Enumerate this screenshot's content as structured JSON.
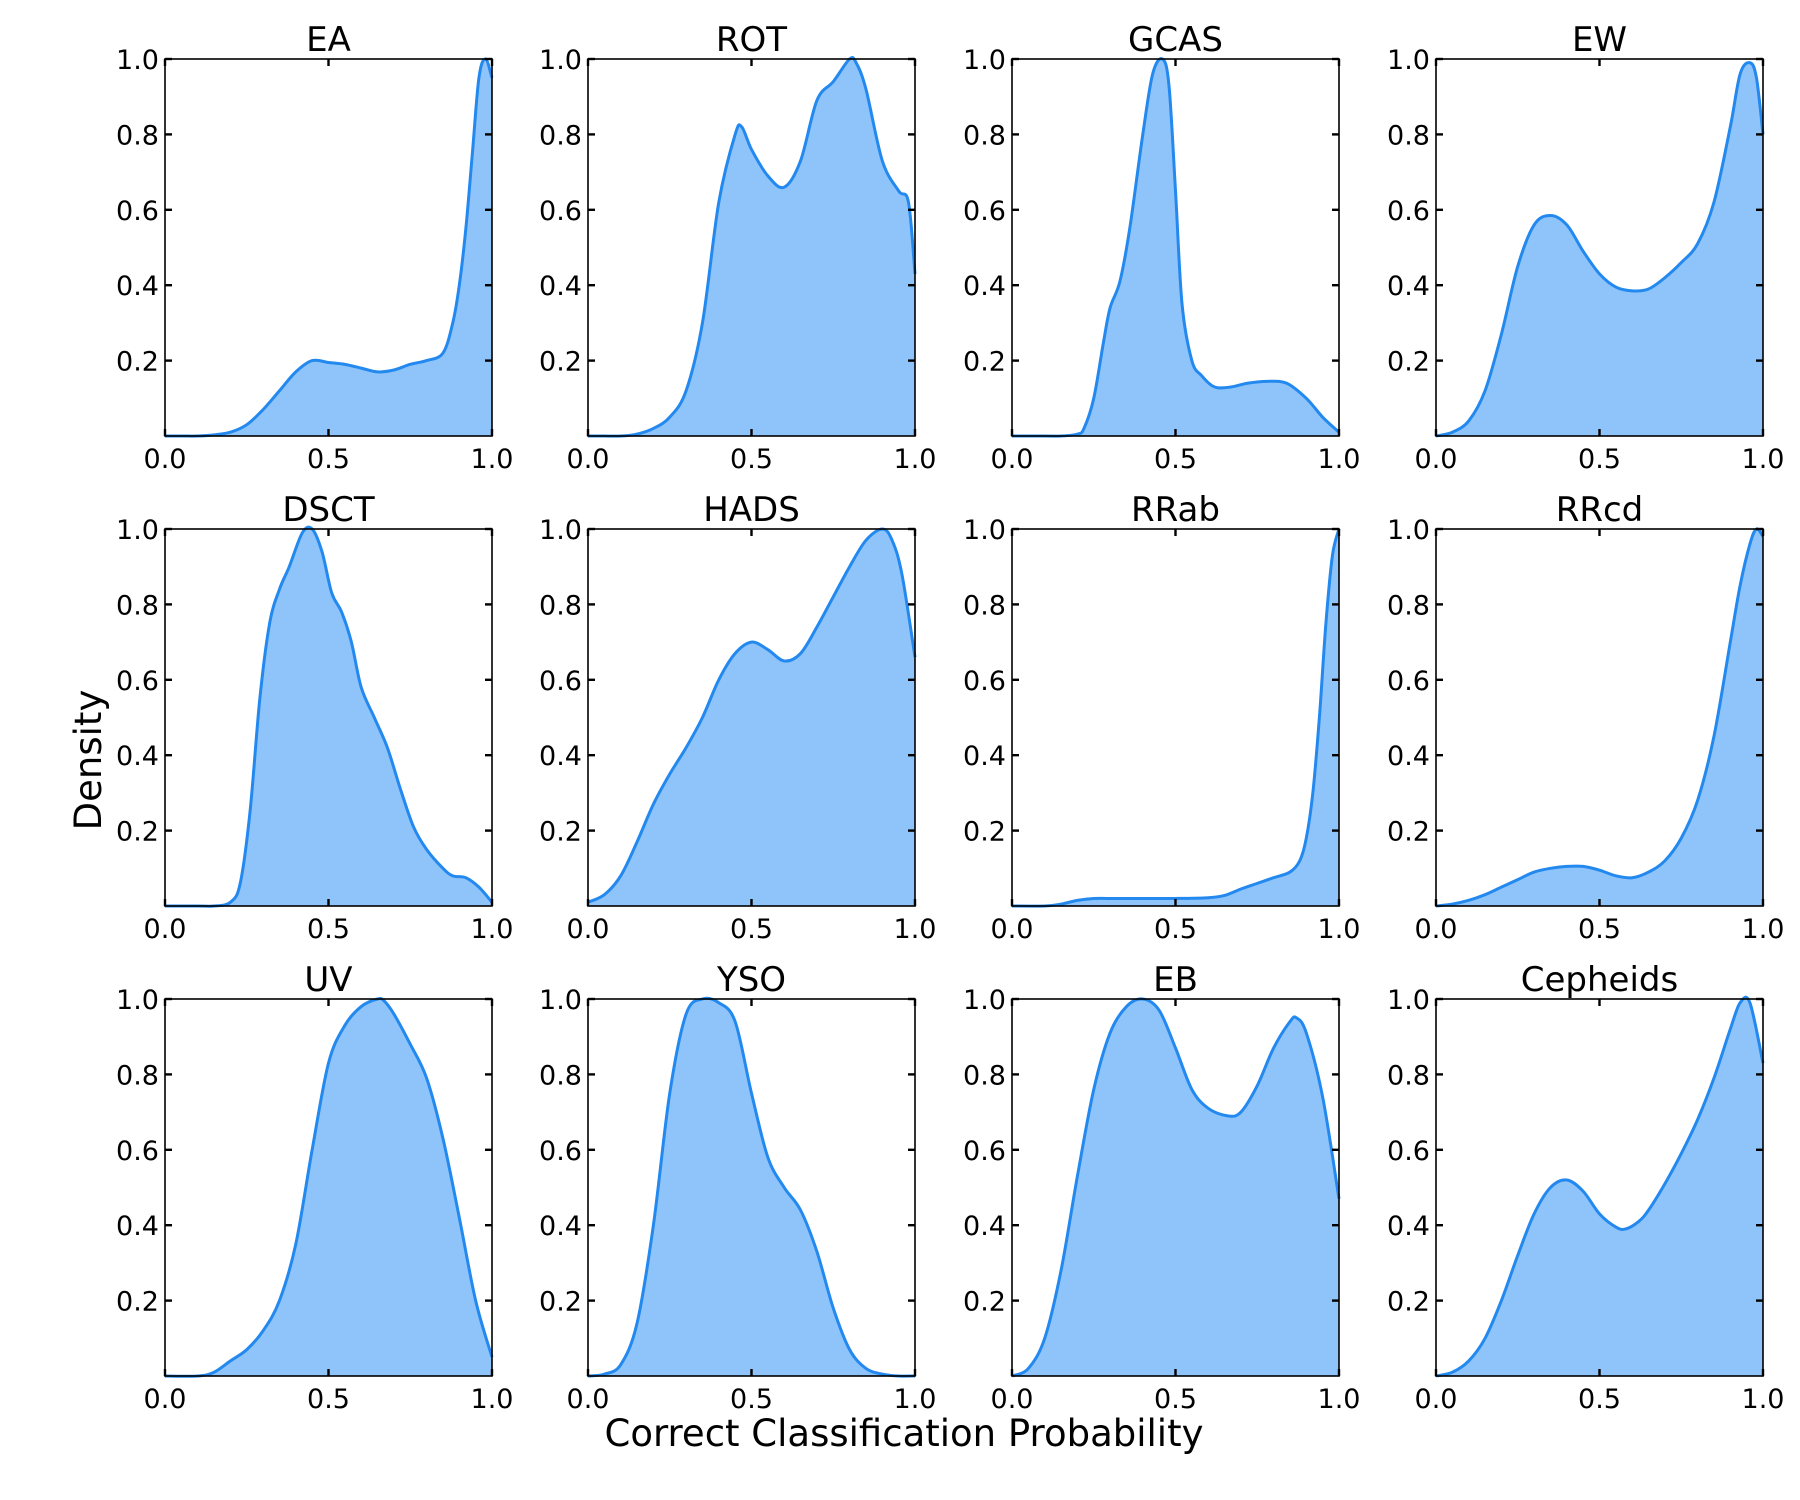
{
  "figure": {
    "xlabel": "Correct Classification Probability",
    "ylabel": "Density"
  },
  "colors": {
    "fill": "#8fc4fb",
    "line": "#2389ef"
  },
  "chart_data": [
    {
      "type": "area",
      "title": "EA",
      "xlim": [
        0,
        1
      ],
      "ylim": [
        0,
        1
      ],
      "xticks": [
        0.0,
        0.5,
        1.0
      ],
      "xtick_labels": [
        "0.0",
        "0.5",
        "1.0"
      ],
      "yticks": [
        0.2,
        0.4,
        0.6,
        0.8,
        1.0
      ],
      "ytick_labels": [
        "0.2",
        "0.4",
        "0.6",
        "0.8",
        "1.0"
      ],
      "x": [
        0.0,
        0.05,
        0.1,
        0.15,
        0.2,
        0.25,
        0.3,
        0.35,
        0.4,
        0.45,
        0.5,
        0.55,
        0.6,
        0.65,
        0.7,
        0.75,
        0.8,
        0.85,
        0.88,
        0.9,
        0.92,
        0.94,
        0.96,
        0.98,
        1.0
      ],
      "y": [
        0.0,
        0.0,
        0.0,
        0.003,
        0.01,
        0.03,
        0.07,
        0.12,
        0.17,
        0.2,
        0.195,
        0.19,
        0.18,
        0.17,
        0.175,
        0.19,
        0.2,
        0.22,
        0.3,
        0.4,
        0.55,
        0.75,
        0.95,
        1.0,
        0.95
      ]
    },
    {
      "type": "area",
      "title": "ROT",
      "xlim": [
        0,
        1
      ],
      "ylim": [
        0,
        1
      ],
      "xticks": [
        0.0,
        0.5,
        1.0
      ],
      "xtick_labels": [
        "0.0",
        "0.5",
        "1.0"
      ],
      "yticks": [
        0.2,
        0.4,
        0.6,
        0.8,
        1.0
      ],
      "ytick_labels": [
        "0.2",
        "0.4",
        "0.6",
        "0.8",
        "1.0"
      ],
      "x": [
        0.0,
        0.05,
        0.1,
        0.15,
        0.2,
        0.25,
        0.3,
        0.35,
        0.4,
        0.45,
        0.47,
        0.5,
        0.55,
        0.6,
        0.65,
        0.7,
        0.75,
        0.8,
        0.82,
        0.85,
        0.9,
        0.95,
        0.98,
        1.0
      ],
      "y": [
        0.0,
        0.0,
        0.0,
        0.005,
        0.02,
        0.05,
        0.12,
        0.3,
        0.62,
        0.8,
        0.82,
        0.76,
        0.69,
        0.66,
        0.73,
        0.89,
        0.94,
        1.0,
        0.99,
        0.92,
        0.73,
        0.65,
        0.62,
        0.43
      ]
    },
    {
      "type": "area",
      "title": "GCAS",
      "xlim": [
        0,
        1
      ],
      "ylim": [
        0,
        1
      ],
      "xticks": [
        0.0,
        0.5,
        1.0
      ],
      "xtick_labels": [
        "0.0",
        "0.5",
        "1.0"
      ],
      "yticks": [
        0.2,
        0.4,
        0.6,
        0.8,
        1.0
      ],
      "ytick_labels": [
        "0.2",
        "0.4",
        "0.6",
        "0.8",
        "1.0"
      ],
      "x": [
        0.0,
        0.1,
        0.15,
        0.2,
        0.22,
        0.25,
        0.28,
        0.3,
        0.33,
        0.36,
        0.4,
        0.43,
        0.46,
        0.48,
        0.5,
        0.52,
        0.55,
        0.58,
        0.62,
        0.67,
        0.72,
        0.78,
        0.84,
        0.9,
        0.95,
        1.0
      ],
      "y": [
        0.0,
        0.0,
        0.0,
        0.005,
        0.02,
        0.1,
        0.25,
        0.34,
        0.41,
        0.55,
        0.8,
        0.96,
        1.0,
        0.93,
        0.65,
        0.35,
        0.2,
        0.16,
        0.13,
        0.13,
        0.14,
        0.145,
        0.14,
        0.1,
        0.05,
        0.01
      ]
    },
    {
      "type": "area",
      "title": "EW",
      "xlim": [
        0,
        1
      ],
      "ylim": [
        0,
        1
      ],
      "xticks": [
        0.0,
        0.5,
        1.0
      ],
      "xtick_labels": [
        "0.0",
        "0.5",
        "1.0"
      ],
      "yticks": [
        0.2,
        0.4,
        0.6,
        0.8,
        1.0
      ],
      "ytick_labels": [
        "0.2",
        "0.4",
        "0.6",
        "0.8",
        "1.0"
      ],
      "x": [
        0.0,
        0.05,
        0.1,
        0.15,
        0.2,
        0.25,
        0.3,
        0.35,
        0.4,
        0.45,
        0.5,
        0.55,
        0.6,
        0.65,
        0.7,
        0.75,
        0.8,
        0.85,
        0.9,
        0.93,
        0.96,
        0.98,
        1.0
      ],
      "y": [
        0.0,
        0.01,
        0.04,
        0.12,
        0.27,
        0.45,
        0.56,
        0.585,
        0.56,
        0.49,
        0.43,
        0.395,
        0.385,
        0.39,
        0.42,
        0.46,
        0.51,
        0.62,
        0.82,
        0.96,
        0.99,
        0.95,
        0.8
      ]
    },
    {
      "type": "area",
      "title": "DSCT",
      "xlim": [
        0,
        1
      ],
      "ylim": [
        0,
        1
      ],
      "xticks": [
        0.0,
        0.5,
        1.0
      ],
      "xtick_labels": [
        "0.0",
        "0.5",
        "1.0"
      ],
      "yticks": [
        0.2,
        0.4,
        0.6,
        0.8,
        1.0
      ],
      "ytick_labels": [
        "0.2",
        "0.4",
        "0.6",
        "0.8",
        "1.0"
      ],
      "x": [
        0.0,
        0.1,
        0.15,
        0.2,
        0.23,
        0.26,
        0.29,
        0.32,
        0.35,
        0.38,
        0.42,
        0.45,
        0.48,
        0.51,
        0.54,
        0.57,
        0.6,
        0.64,
        0.68,
        0.72,
        0.76,
        0.8,
        0.85,
        0.88,
        0.92,
        0.96,
        1.0
      ],
      "y": [
        0.0,
        0.0,
        0.0,
        0.01,
        0.06,
        0.25,
        0.55,
        0.75,
        0.84,
        0.9,
        0.99,
        1.0,
        0.94,
        0.83,
        0.78,
        0.7,
        0.58,
        0.5,
        0.42,
        0.31,
        0.21,
        0.15,
        0.1,
        0.08,
        0.075,
        0.05,
        0.01
      ]
    },
    {
      "type": "area",
      "title": "HADS",
      "xlim": [
        0,
        1
      ],
      "ylim": [
        0,
        1
      ],
      "xticks": [
        0.0,
        0.5,
        1.0
      ],
      "xtick_labels": [
        "0.0",
        "0.5",
        "1.0"
      ],
      "yticks": [
        0.2,
        0.4,
        0.6,
        0.8,
        1.0
      ],
      "ytick_labels": [
        "0.2",
        "0.4",
        "0.6",
        "0.8",
        "1.0"
      ],
      "x": [
        0.0,
        0.05,
        0.1,
        0.15,
        0.2,
        0.25,
        0.3,
        0.35,
        0.4,
        0.45,
        0.5,
        0.55,
        0.6,
        0.65,
        0.7,
        0.75,
        0.8,
        0.85,
        0.9,
        0.93,
        0.96,
        1.0
      ],
      "y": [
        0.01,
        0.03,
        0.08,
        0.17,
        0.27,
        0.35,
        0.42,
        0.5,
        0.6,
        0.67,
        0.7,
        0.68,
        0.65,
        0.67,
        0.74,
        0.82,
        0.9,
        0.97,
        1.0,
        0.97,
        0.88,
        0.66
      ]
    },
    {
      "type": "area",
      "title": "RRab",
      "xlim": [
        0,
        1
      ],
      "ylim": [
        0,
        1
      ],
      "xticks": [
        0.0,
        0.5,
        1.0
      ],
      "xtick_labels": [
        "0.0",
        "0.5",
        "1.0"
      ],
      "yticks": [
        0.2,
        0.4,
        0.6,
        0.8,
        1.0
      ],
      "ytick_labels": [
        "0.2",
        "0.4",
        "0.6",
        "0.8",
        "1.0"
      ],
      "x": [
        0.0,
        0.1,
        0.15,
        0.2,
        0.25,
        0.3,
        0.4,
        0.5,
        0.6,
        0.65,
        0.7,
        0.75,
        0.8,
        0.85,
        0.88,
        0.9,
        0.92,
        0.94,
        0.96,
        0.98,
        1.0
      ],
      "y": [
        0.0,
        0.0,
        0.005,
        0.015,
        0.02,
        0.02,
        0.02,
        0.02,
        0.022,
        0.028,
        0.045,
        0.06,
        0.075,
        0.09,
        0.12,
        0.18,
        0.3,
        0.5,
        0.75,
        0.93,
        1.0
      ]
    },
    {
      "type": "area",
      "title": "RRcd",
      "xlim": [
        0,
        1
      ],
      "ylim": [
        0,
        1
      ],
      "xticks": [
        0.0,
        0.5,
        1.0
      ],
      "xtick_labels": [
        "0.0",
        "0.5",
        "1.0"
      ],
      "yticks": [
        0.2,
        0.4,
        0.6,
        0.8,
        1.0
      ],
      "ytick_labels": [
        "0.2",
        "0.4",
        "0.6",
        "0.8",
        "1.0"
      ],
      "x": [
        0.0,
        0.05,
        0.1,
        0.15,
        0.2,
        0.25,
        0.3,
        0.35,
        0.4,
        0.45,
        0.5,
        0.55,
        0.6,
        0.65,
        0.7,
        0.75,
        0.8,
        0.85,
        0.9,
        0.93,
        0.96,
        0.98,
        1.0
      ],
      "y": [
        0.0,
        0.005,
        0.015,
        0.03,
        0.05,
        0.07,
        0.09,
        0.1,
        0.105,
        0.105,
        0.095,
        0.08,
        0.075,
        0.09,
        0.12,
        0.18,
        0.28,
        0.45,
        0.7,
        0.85,
        0.96,
        1.0,
        0.98
      ]
    },
    {
      "type": "area",
      "title": "UV",
      "xlim": [
        0,
        1
      ],
      "ylim": [
        0,
        1
      ],
      "xticks": [
        0.0,
        0.5,
        1.0
      ],
      "xtick_labels": [
        "0.0",
        "0.5",
        "1.0"
      ],
      "yticks": [
        0.2,
        0.4,
        0.6,
        0.8,
        1.0
      ],
      "ytick_labels": [
        "0.2",
        "0.4",
        "0.6",
        "0.8",
        "1.0"
      ],
      "x": [
        0.0,
        0.1,
        0.15,
        0.2,
        0.25,
        0.3,
        0.35,
        0.4,
        0.45,
        0.5,
        0.55,
        0.6,
        0.65,
        0.67,
        0.7,
        0.75,
        0.8,
        0.85,
        0.9,
        0.95,
        1.0
      ],
      "y": [
        0.0,
        0.0,
        0.01,
        0.04,
        0.07,
        0.12,
        0.2,
        0.35,
        0.6,
        0.83,
        0.93,
        0.98,
        1.0,
        0.995,
        0.96,
        0.88,
        0.79,
        0.63,
        0.42,
        0.2,
        0.05
      ]
    },
    {
      "type": "area",
      "title": "YSO",
      "xlim": [
        0,
        1
      ],
      "ylim": [
        0,
        1
      ],
      "xticks": [
        0.0,
        0.5,
        1.0
      ],
      "xtick_labels": [
        "0.0",
        "0.5",
        "1.0"
      ],
      "yticks": [
        0.2,
        0.4,
        0.6,
        0.8,
        1.0
      ],
      "ytick_labels": [
        "0.2",
        "0.4",
        "0.6",
        "0.8",
        "1.0"
      ],
      "x": [
        0.0,
        0.05,
        0.1,
        0.15,
        0.2,
        0.25,
        0.3,
        0.35,
        0.4,
        0.45,
        0.5,
        0.55,
        0.6,
        0.65,
        0.7,
        0.75,
        0.8,
        0.85,
        0.9,
        0.95,
        1.0
      ],
      "y": [
        0.0,
        0.005,
        0.03,
        0.14,
        0.4,
        0.75,
        0.96,
        1.0,
        0.99,
        0.94,
        0.75,
        0.58,
        0.5,
        0.44,
        0.33,
        0.18,
        0.07,
        0.02,
        0.005,
        0.0,
        0.0
      ]
    },
    {
      "type": "area",
      "title": "EB",
      "xlim": [
        0,
        1
      ],
      "ylim": [
        0,
        1
      ],
      "xticks": [
        0.0,
        0.5,
        1.0
      ],
      "xtick_labels": [
        "0.0",
        "0.5",
        "1.0"
      ],
      "yticks": [
        0.2,
        0.4,
        0.6,
        0.8,
        1.0
      ],
      "ytick_labels": [
        "0.2",
        "0.4",
        "0.6",
        "0.8",
        "1.0"
      ],
      "x": [
        0.0,
        0.05,
        0.1,
        0.15,
        0.2,
        0.25,
        0.3,
        0.35,
        0.4,
        0.45,
        0.5,
        0.55,
        0.6,
        0.66,
        0.7,
        0.75,
        0.8,
        0.85,
        0.87,
        0.9,
        0.95,
        1.0
      ],
      "y": [
        0.0,
        0.02,
        0.1,
        0.28,
        0.53,
        0.76,
        0.91,
        0.98,
        1.0,
        0.97,
        0.87,
        0.76,
        0.71,
        0.69,
        0.7,
        0.77,
        0.87,
        0.94,
        0.95,
        0.91,
        0.74,
        0.47
      ]
    },
    {
      "type": "area",
      "title": "Cepheids",
      "xlim": [
        0,
        1
      ],
      "ylim": [
        0,
        1
      ],
      "xticks": [
        0.0,
        0.5,
        1.0
      ],
      "xtick_labels": [
        "0.0",
        "0.5",
        "1.0"
      ],
      "yticks": [
        0.2,
        0.4,
        0.6,
        0.8,
        1.0
      ],
      "ytick_labels": [
        "0.2",
        "0.4",
        "0.6",
        "0.8",
        "1.0"
      ],
      "x": [
        0.0,
        0.05,
        0.1,
        0.15,
        0.2,
        0.25,
        0.3,
        0.35,
        0.4,
        0.45,
        0.5,
        0.55,
        0.58,
        0.62,
        0.65,
        0.7,
        0.75,
        0.8,
        0.85,
        0.9,
        0.93,
        0.96,
        1.0
      ],
      "y": [
        0.0,
        0.01,
        0.04,
        0.1,
        0.2,
        0.32,
        0.43,
        0.5,
        0.52,
        0.49,
        0.43,
        0.395,
        0.39,
        0.41,
        0.44,
        0.51,
        0.59,
        0.68,
        0.79,
        0.92,
        0.99,
        0.99,
        0.83
      ]
    }
  ]
}
